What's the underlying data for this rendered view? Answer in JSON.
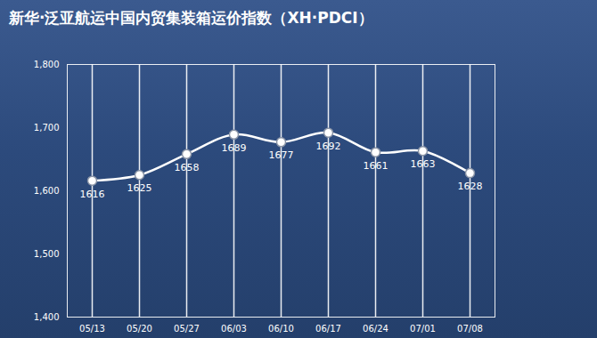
{
  "chart_data": {
    "type": "line",
    "title": "新华·泛亚航运中国内贸集装箱运价指数（XH·PDCI）",
    "categories": [
      "05/13",
      "05/20",
      "05/27",
      "06/03",
      "06/10",
      "06/17",
      "06/24",
      "07/01",
      "07/08"
    ],
    "values": [
      1616,
      1625,
      1658,
      1689,
      1677,
      1692,
      1661,
      1663,
      1628
    ],
    "color": "#ffffff",
    "ylim": [
      1400,
      1800
    ],
    "yticks": [
      {
        "value": 1400,
        "label": "1,400"
      },
      {
        "value": 1500,
        "label": "1,500"
      },
      {
        "value": 1600,
        "label": "1,600"
      },
      {
        "value": 1700,
        "label": "1,700"
      },
      {
        "value": 1800,
        "label": "1,800"
      }
    ],
    "grid": true,
    "data_labels": true,
    "marker": "circle"
  }
}
